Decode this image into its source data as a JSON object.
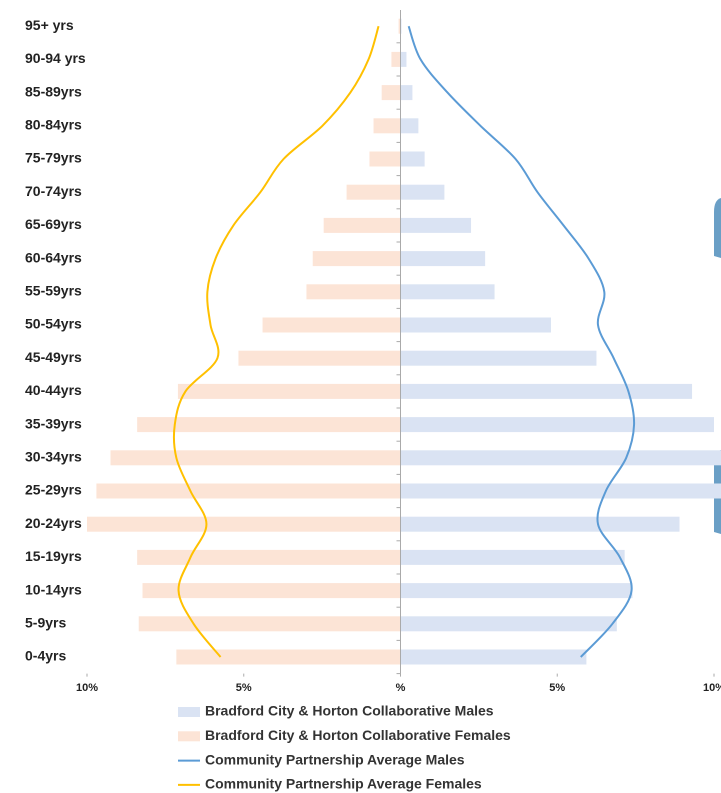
{
  "chart_data": {
    "type": "pyramid",
    "categories": [
      "0-4yrs",
      "5-9yrs",
      "10-14yrs",
      "15-19yrs",
      "20-24yrs",
      "25-29yrs",
      "30-34yrs",
      "35-39yrs",
      "40-44yrs",
      "45-49yrs",
      "50-54yrs",
      "55-59yrs",
      "60-64yrs",
      "65-69yrs",
      "70-74yrs",
      "75-79yrs",
      "80-84yrs",
      "85-89yrs",
      "90-94 yrs",
      "95+  yrs"
    ],
    "xlim": [
      -10,
      10
    ],
    "xticks": [
      {
        "value": -10,
        "label": "10%"
      },
      {
        "value": -5,
        "label": "5%"
      },
      {
        "value": 0,
        "label": "%"
      },
      {
        "value": 5,
        "label": "5%"
      },
      {
        "value": 10,
        "label": "10%"
      }
    ],
    "series": [
      {
        "name": "Bradford City  & Horton Collaborative Males",
        "mark": "bar",
        "side": "right",
        "color": "#dae3f3",
        "values": [
          5.93,
          6.9,
          7.4,
          7.15,
          8.9,
          10.3,
          10.4,
          10.0,
          9.3,
          6.25,
          4.8,
          3.0,
          2.7,
          2.25,
          1.4,
          0.77,
          0.57,
          0.38,
          0.19,
          0.03
        ]
      },
      {
        "name": "Bradford City  & Horton Collaborative Females",
        "mark": "bar",
        "side": "left",
        "color": "#fce4d6",
        "values": [
          7.15,
          8.35,
          8.23,
          8.4,
          10.0,
          9.7,
          9.25,
          8.4,
          7.1,
          5.17,
          4.4,
          3.0,
          2.8,
          2.45,
          1.72,
          0.99,
          0.86,
          0.6,
          0.29,
          0.06
        ]
      },
      {
        "name": "Community Partnership Average Males",
        "mark": "line",
        "side": "right",
        "color": "#5b9bd5",
        "values": [
          5.75,
          6.76,
          7.37,
          7.0,
          6.3,
          6.55,
          7.2,
          7.45,
          7.27,
          6.8,
          6.3,
          6.5,
          6.0,
          5.2,
          4.37,
          3.67,
          2.55,
          1.5,
          0.64,
          0.26
        ]
      },
      {
        "name": "Community Partnership Average Females",
        "mark": "line",
        "side": "left",
        "color": "#ffc000",
        "values": [
          5.74,
          6.6,
          7.08,
          6.7,
          6.19,
          6.7,
          7.15,
          7.2,
          6.86,
          5.84,
          6.06,
          6.16,
          5.9,
          5.33,
          4.47,
          3.73,
          2.49,
          1.6,
          1.02,
          0.7
        ]
      }
    ]
  }
}
